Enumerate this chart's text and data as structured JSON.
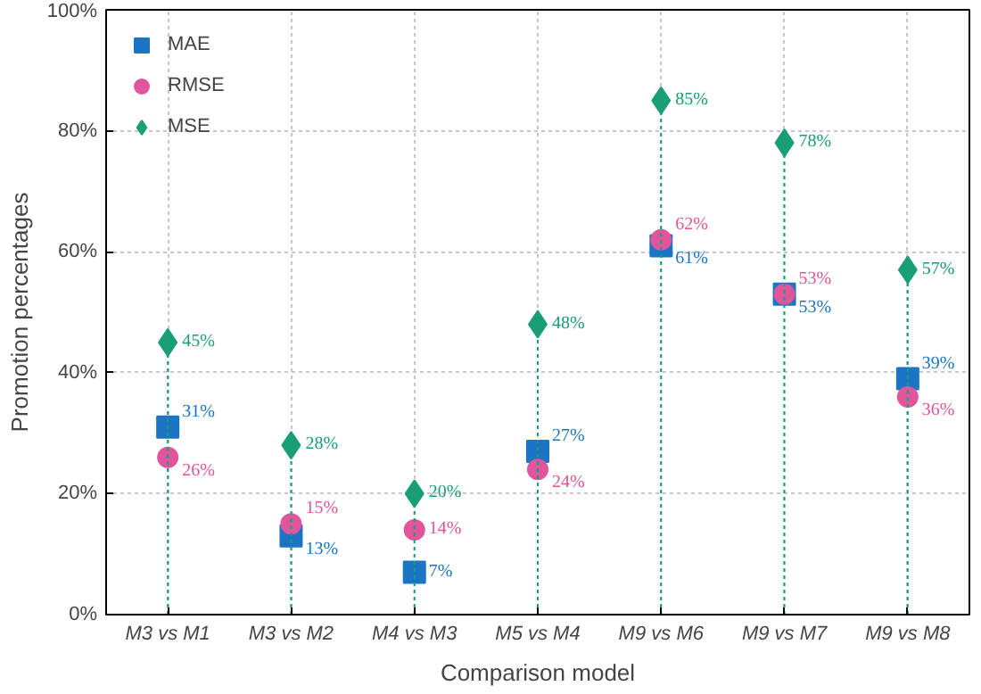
{
  "chart_data": {
    "type": "scatter",
    "xlabel": "Comparison model",
    "ylabel": "Promotion percentages",
    "categories": [
      "M3 vs M1",
      "M3 vs M2",
      "M4 vs M3",
      "M5 vs M4",
      "M9 vs M6",
      "M9 vs M7",
      "M9 vs M8"
    ],
    "series": [
      {
        "name": "MAE",
        "color": "#1b75c4",
        "marker": "square",
        "values": [
          31,
          13,
          7,
          27,
          61,
          53,
          39
        ],
        "value_labels": [
          "31%",
          "13%",
          "7%",
          "27%",
          "61%",
          "53%",
          "39%"
        ]
      },
      {
        "name": "RMSE",
        "color": "#e0559b",
        "marker": "circle",
        "values": [
          26,
          15,
          14,
          24,
          62,
          53,
          36
        ],
        "value_labels": [
          "26%",
          "15%",
          "14%",
          "24%",
          "62%",
          "53%",
          "36%"
        ]
      },
      {
        "name": "MSE",
        "type": "lollipop",
        "line_style": "dotted",
        "color": "#1a9e77",
        "marker": "diamond",
        "values": [
          45,
          28,
          20,
          48,
          85,
          78,
          57
        ],
        "value_labels": [
          "45%",
          "28%",
          "20%",
          "48%",
          "85%",
          "78%",
          "57%"
        ]
      }
    ],
    "ylim": [
      0,
      100
    ],
    "yticks": [
      {
        "value": 0,
        "label": "0%"
      },
      {
        "value": 20,
        "label": "20%"
      },
      {
        "value": 40,
        "label": "40%"
      },
      {
        "value": 60,
        "label": "60%"
      },
      {
        "value": 80,
        "label": "80%"
      },
      {
        "value": 100,
        "label": "100%"
      }
    ],
    "grid": true,
    "legend": "top left"
  }
}
